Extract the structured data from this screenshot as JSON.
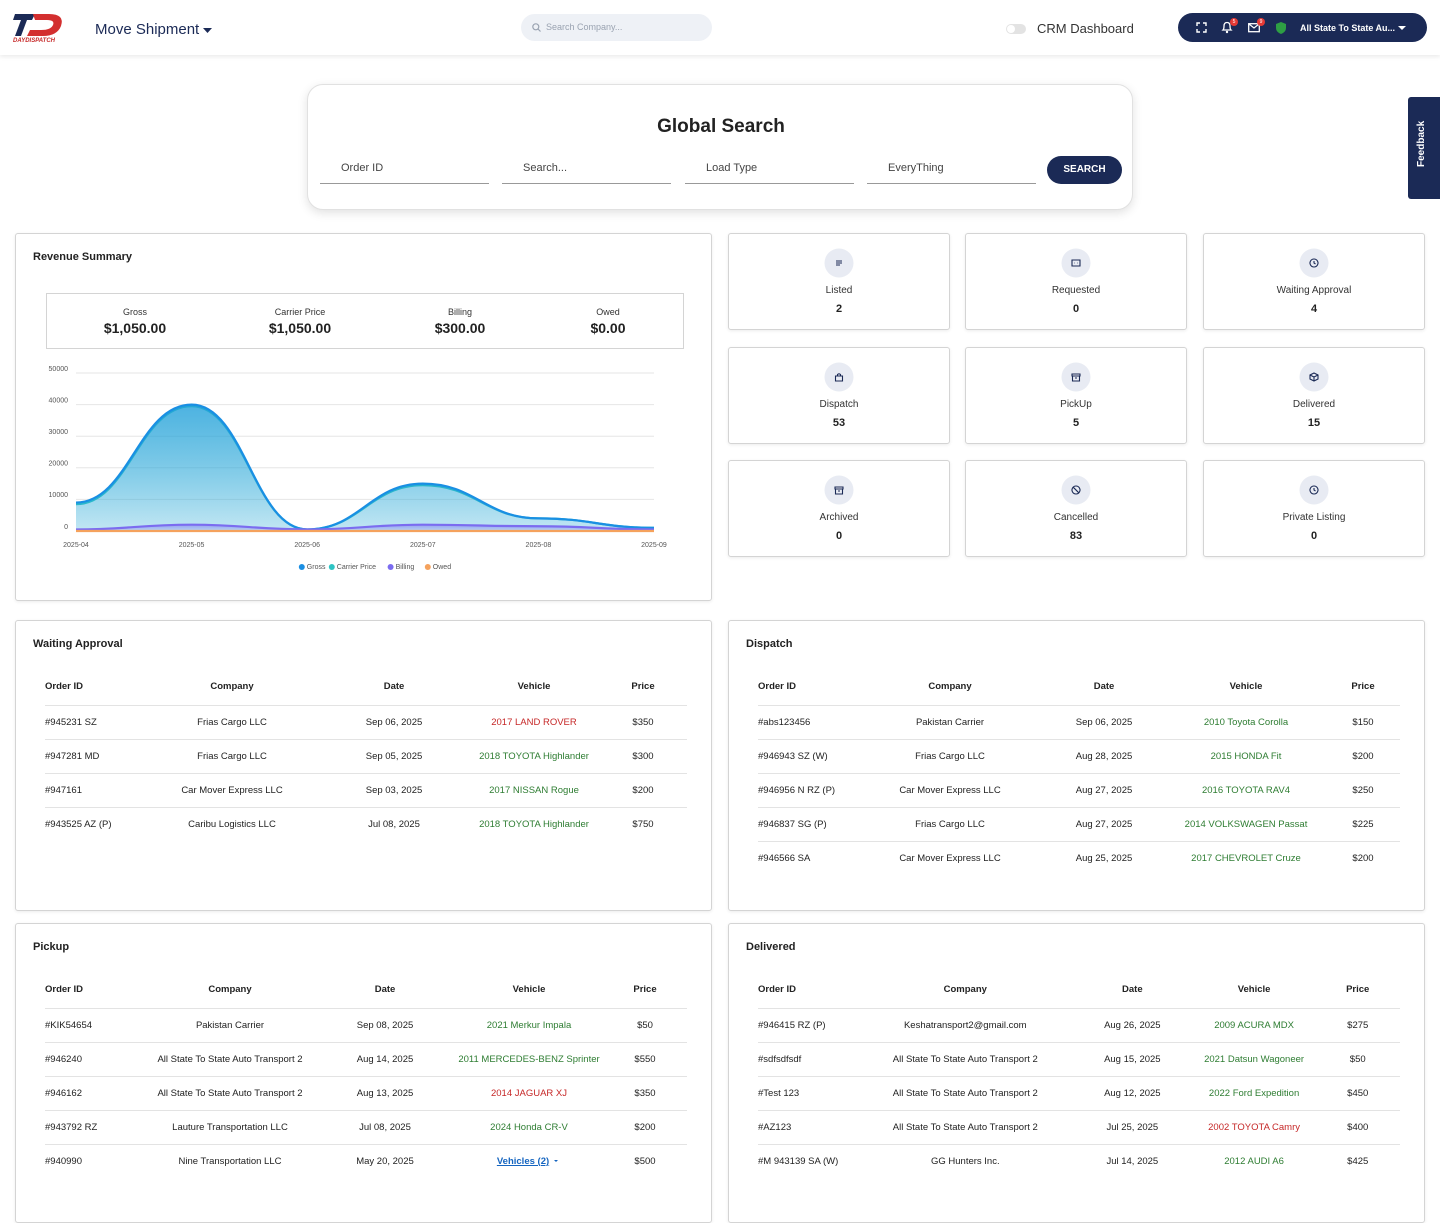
{
  "header": {
    "brand": "DAYDISPATCH",
    "menu": "Move Shipment",
    "search_placeholder": "Search Company...",
    "crm_label": "CRM Dashboard",
    "notification_badge": "5",
    "message_badge": "9",
    "account": "All State To State Au..."
  },
  "feedback": "Feedback",
  "global_search": {
    "title": "Global Search",
    "fields": [
      "Order ID",
      "Search...",
      "Load Type",
      "EveryThing"
    ],
    "button": "SEARCH"
  },
  "revenue": {
    "title": "Revenue Summary",
    "stats": [
      {
        "label": "Gross",
        "value": "$1,050.00"
      },
      {
        "label": "Carrier Price",
        "value": "$1,050.00"
      },
      {
        "label": "Billing",
        "value": "$300.00"
      },
      {
        "label": "Owed",
        "value": "$0.00"
      }
    ]
  },
  "chart_data": {
    "type": "area",
    "x": [
      "2025-04",
      "2025-05",
      "2025-06",
      "2025-07",
      "2025-08",
      "2025-09"
    ],
    "series": [
      {
        "name": "Gross",
        "color": "#1a8fe3",
        "values": [
          9000,
          40000,
          500,
          15000,
          4000,
          1000
        ]
      },
      {
        "name": "Carrier Price",
        "color": "#2ec4c4",
        "values": [
          8500,
          39500,
          500,
          14500,
          4000,
          1000
        ]
      },
      {
        "name": "Billing",
        "color": "#7b6cf0",
        "values": [
          500,
          2000,
          500,
          2000,
          1500,
          500
        ]
      },
      {
        "name": "Owed",
        "color": "#f5a25d",
        "values": [
          0,
          0,
          0,
          0,
          0,
          0
        ]
      }
    ],
    "ylim": [
      0,
      50000
    ],
    "yticks": [
      0,
      10000,
      20000,
      30000,
      40000,
      50000
    ],
    "grid": true,
    "legend": "bottom"
  },
  "status_cards": [
    {
      "label": "Listed",
      "count": 2
    },
    {
      "label": "Requested",
      "count": 0
    },
    {
      "label": "Waiting Approval",
      "count": 4
    },
    {
      "label": "Dispatch",
      "count": 53
    },
    {
      "label": "PickUp",
      "count": 5
    },
    {
      "label": "Delivered",
      "count": 15
    },
    {
      "label": "Archived",
      "count": 0
    },
    {
      "label": "Cancelled",
      "count": 83
    },
    {
      "label": "Private Listing",
      "count": 0
    }
  ],
  "tables": [
    {
      "title": "Waiting Approval",
      "columns": [
        "Order ID",
        "Company",
        "Date",
        "Vehicle",
        "Price"
      ],
      "rows": [
        {
          "cells": [
            "#945231 SZ",
            "Frias Cargo LLC",
            "Sep 06, 2025",
            "2017 LAND ROVER",
            "$350"
          ],
          "vehicle_color": "#c62828"
        },
        {
          "cells": [
            "#947281 MD",
            "Frias Cargo LLC",
            "Sep 05, 2025",
            "2018 TOYOTA Highlander",
            "$300"
          ],
          "vehicle_color": "#2e7d32"
        },
        {
          "cells": [
            "#947161",
            "Car Mover Express LLC",
            "Sep 03, 2025",
            "2017 NISSAN Rogue",
            "$200"
          ],
          "vehicle_color": "#2e7d32"
        },
        {
          "cells": [
            "#943525 AZ (P)",
            "Caribu Logistics LLC",
            "Jul 08, 2025",
            "2018 TOYOTA Highlander",
            "$750"
          ],
          "vehicle_color": "#2e7d32"
        }
      ]
    },
    {
      "title": "Dispatch",
      "columns": [
        "Order ID",
        "Company",
        "Date",
        "Vehicle",
        "Price"
      ],
      "rows": [
        {
          "cells": [
            "#abs123456",
            "Pakistan Carrier",
            "Sep 06, 2025",
            "2010 Toyota Corolla",
            "$150"
          ],
          "vehicle_color": "#2e7d32"
        },
        {
          "cells": [
            "#946943 SZ (W)",
            "Frias Cargo LLC",
            "Aug 28, 2025",
            "2015 HONDA Fit",
            "$200"
          ],
          "vehicle_color": "#2e7d32"
        },
        {
          "cells": [
            "#946956 N RZ (P)",
            "Car Mover Express LLC",
            "Aug 27, 2025",
            "2016 TOYOTA RAV4",
            "$250"
          ],
          "vehicle_color": "#2e7d32"
        },
        {
          "cells": [
            "#946837 SG (P)",
            "Frias Cargo LLC",
            "Aug 27, 2025",
            "2014 VOLKSWAGEN Passat",
            "$225"
          ],
          "vehicle_color": "#2e7d32"
        },
        {
          "cells": [
            "#946566 SA",
            "Car Mover Express LLC",
            "Aug 25, 2025",
            "2017 CHEVROLET Cruze",
            "$200"
          ],
          "vehicle_color": "#2e7d32"
        }
      ]
    },
    {
      "title": "Pickup",
      "columns": [
        "Order ID",
        "Company",
        "Date",
        "Vehicle",
        "Price"
      ],
      "rows": [
        {
          "cells": [
            "#KIK54654",
            "Pakistan Carrier",
            "Sep 08, 2025",
            "2021 Merkur Impala",
            "$50"
          ],
          "vehicle_color": "#2e7d32"
        },
        {
          "cells": [
            "#946240",
            "All State To State Auto Transport 2",
            "Aug 14, 2025",
            "2011 MERCEDES-BENZ Sprinter",
            "$550"
          ],
          "vehicle_color": "#2e7d32"
        },
        {
          "cells": [
            "#946162",
            "All State To State Auto Transport 2",
            "Aug 13, 2025",
            "2014 JAGUAR XJ",
            "$350"
          ],
          "vehicle_color": "#c62828"
        },
        {
          "cells": [
            "#943792 RZ",
            "Lauture Transportation LLC",
            "Jul 08, 2025",
            "2024 Honda CR-V",
            "$200"
          ],
          "vehicle_color": "#2e7d32"
        },
        {
          "cells": [
            "#940990",
            "Nine Transportation LLC",
            "May 20, 2025",
            "Vehicles (2)",
            "$500"
          ],
          "vehicle_color": "#1565c0",
          "link": true
        }
      ]
    },
    {
      "title": "Delivered",
      "columns": [
        "Order ID",
        "Company",
        "Date",
        "Vehicle",
        "Price"
      ],
      "rows": [
        {
          "cells": [
            "#946415 RZ (P)",
            "Keshatransport2@gmail.com",
            "Aug 26, 2025",
            "2009 ACURA MDX",
            "$275"
          ],
          "vehicle_color": "#2e7d32"
        },
        {
          "cells": [
            "#sdfsdfsdf",
            "All State To State Auto Transport 2",
            "Aug 15, 2025",
            "2021 Datsun Wagoneer",
            "$50"
          ],
          "vehicle_color": "#2e7d32"
        },
        {
          "cells": [
            "#Test 123",
            "All State To State Auto Transport 2",
            "Aug 12, 2025",
            "2022 Ford Expedition",
            "$450"
          ],
          "vehicle_color": "#2e7d32"
        },
        {
          "cells": [
            "#AZ123",
            "All State To State Auto Transport 2",
            "Jul 25, 2025",
            "2002 TOYOTA Camry",
            "$400"
          ],
          "vehicle_color": "#c62828"
        },
        {
          "cells": [
            "#M 943139 SA (W)",
            "GG Hunters Inc.",
            "Jul 14, 2025",
            "2012 AUDI A6",
            "$425"
          ],
          "vehicle_color": "#2e7d32"
        }
      ]
    }
  ]
}
